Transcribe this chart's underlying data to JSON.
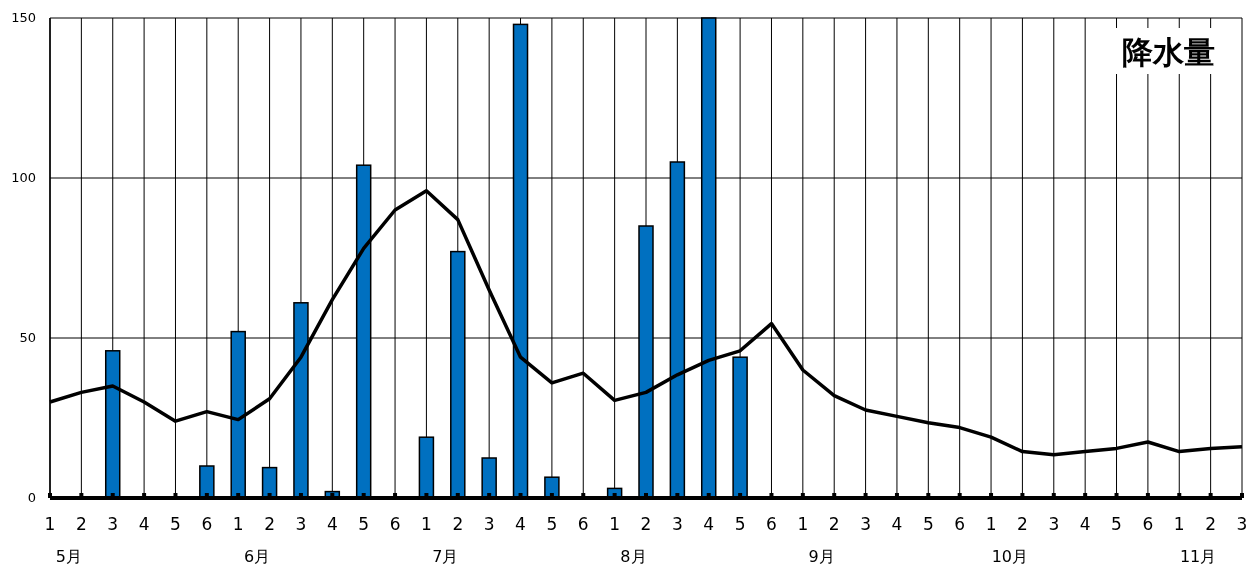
{
  "chart_data": {
    "type": "bar",
    "title": "降水量",
    "categories": [
      "1",
      "2",
      "3",
      "4",
      "5",
      "6",
      "1",
      "2",
      "3",
      "4",
      "5",
      "6",
      "1",
      "2",
      "3",
      "4",
      "5",
      "6",
      "1",
      "2",
      "3",
      "4",
      "5",
      "6",
      "1",
      "2",
      "3",
      "4",
      "5",
      "6",
      "1",
      "2",
      "3",
      "4",
      "5",
      "6",
      "1",
      "2",
      "3"
    ],
    "series": [
      {
        "color": "#0070c0",
        "values": [
          0,
          0,
          46,
          0,
          0,
          10,
          52,
          9.5,
          61,
          2,
          104,
          0,
          19,
          77,
          12.5,
          148,
          6.5,
          0,
          3,
          85,
          105,
          150,
          44,
          null,
          null,
          null,
          null,
          null,
          null,
          null,
          null,
          null,
          null,
          null,
          null,
          null,
          null,
          null,
          null
        ]
      },
      {
        "type": "line",
        "color": "#000000",
        "values": [
          30,
          33,
          35,
          30,
          24,
          27,
          24.5,
          31,
          44,
          62,
          78,
          90,
          96,
          87,
          65,
          44,
          36,
          39,
          30.5,
          33,
          38.5,
          43,
          46,
          54.5,
          40,
          32,
          27.5,
          25.5,
          23.5,
          22,
          19,
          14.5,
          13.5,
          14.5,
          15.5,
          17.5,
          14.5,
          15.5,
          16
        ]
      }
    ],
    "annotations": [
      "5月",
      "6月",
      "7月",
      "8月",
      "9月",
      "10月",
      "11月"
    ],
    "ylim": [
      0,
      150
    ],
    "yticks": [
      0,
      50,
      100,
      150
    ],
    "grid": true
  }
}
